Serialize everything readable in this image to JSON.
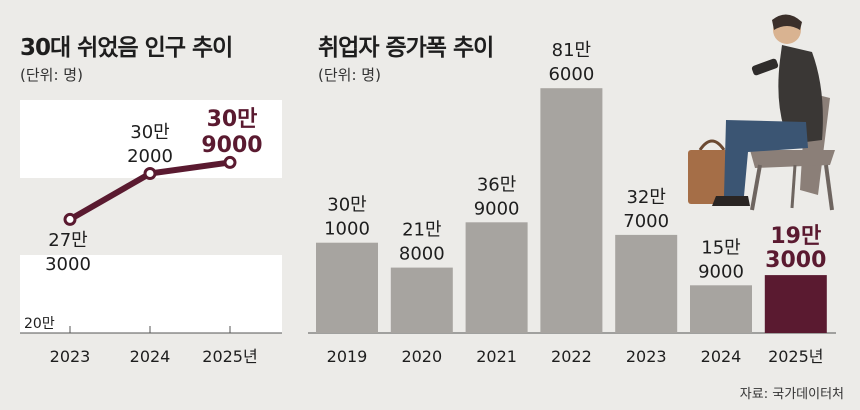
{
  "colors": {
    "background": "#ecebe8",
    "panel": "#ffffff",
    "bar": "#a7a4a0",
    "highlight": "#5a1a30",
    "text": "#1e1e1e"
  },
  "source": "자료: 국가데이터처",
  "chart_data": [
    {
      "type": "line",
      "title": "30대 쉬었음 인구 추이",
      "unit": "(단위: 명)",
      "y_axis_label": "20만",
      "ylim": [
        200000,
        320000
      ],
      "categories": [
        "2023",
        "2024",
        "2025년"
      ],
      "values": [
        273000,
        302000,
        309000
      ],
      "labels": [
        [
          "27만",
          "3000"
        ],
        [
          "30만",
          "2000"
        ],
        [
          "30만",
          "9000"
        ]
      ],
      "highlight_index": 2
    },
    {
      "type": "bar",
      "title": "취업자 증가폭 추이",
      "unit": "(단위: 명)",
      "ylim": [
        0,
        850000
      ],
      "categories": [
        "2019",
        "2020",
        "2021",
        "2022",
        "2023",
        "2024",
        "2025년"
      ],
      "values": [
        301000,
        218000,
        369000,
        816000,
        327000,
        159000,
        193000
      ],
      "labels": [
        [
          "30만",
          "1000"
        ],
        [
          "21만",
          "8000"
        ],
        [
          "36만",
          "9000"
        ],
        [
          "81만",
          "6000"
        ],
        [
          "32만",
          "7000"
        ],
        [
          "15만",
          "9000"
        ],
        [
          "19만",
          "3000"
        ]
      ],
      "highlight_index": 6
    }
  ]
}
